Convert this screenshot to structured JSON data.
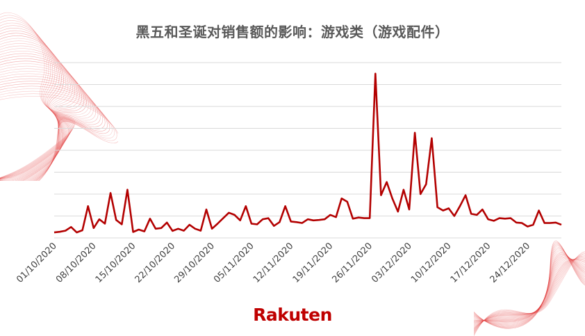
{
  "colors": {
    "line": "#b30000",
    "grid": "#d9d9d9",
    "title": "#595959",
    "logo": "#bf0000"
  },
  "logo": {
    "text": "Rakuten"
  },
  "chart_data": {
    "type": "line",
    "title": "黑五和圣诞对销售额的影响：游戏类（游戏配件）",
    "xlabel": "",
    "ylabel": "",
    "ylim": [
      0,
      8
    ],
    "y_ticks_labeled": false,
    "grid": "horizontal",
    "legend": "none",
    "x_start": "01/10/2020",
    "x_tick_labels": [
      "01/10/2020",
      "08/10/2020",
      "15/10/2020",
      "22/10/2020",
      "29/10/2020",
      "05/11/2020",
      "12/11/2020",
      "19/11/2020",
      "26/11/2020",
      "03/12/2020",
      "10/12/2020",
      "17/12/2020",
      "24/12/2020"
    ],
    "series": [
      {
        "name": "",
        "values": [
          0.25,
          0.28,
          0.33,
          0.5,
          0.25,
          0.35,
          1.45,
          0.45,
          0.85,
          0.65,
          2.05,
          0.82,
          0.62,
          2.2,
          0.27,
          0.38,
          0.3,
          0.88,
          0.42,
          0.45,
          0.7,
          0.32,
          0.42,
          0.33,
          0.6,
          0.42,
          0.33,
          1.3,
          0.42,
          0.65,
          0.9,
          1.15,
          1.05,
          0.8,
          1.45,
          0.65,
          0.62,
          0.85,
          0.9,
          0.55,
          0.72,
          1.45,
          0.75,
          0.72,
          0.68,
          0.85,
          0.8,
          0.82,
          0.85,
          1.05,
          0.95,
          1.8,
          1.65,
          0.88,
          0.93,
          0.9,
          0.9,
          7.5,
          1.95,
          2.55,
          1.8,
          1.2,
          2.2,
          1.3,
          4.8,
          2.0,
          2.45,
          4.55,
          1.4,
          1.25,
          1.35,
          1.0,
          1.45,
          1.95,
          1.1,
          1.05,
          1.3,
          0.85,
          0.78,
          0.9,
          0.88,
          0.9,
          0.7,
          0.68,
          0.52,
          0.6,
          1.25,
          0.68,
          0.68,
          0.7,
          0.6
        ]
      }
    ]
  }
}
